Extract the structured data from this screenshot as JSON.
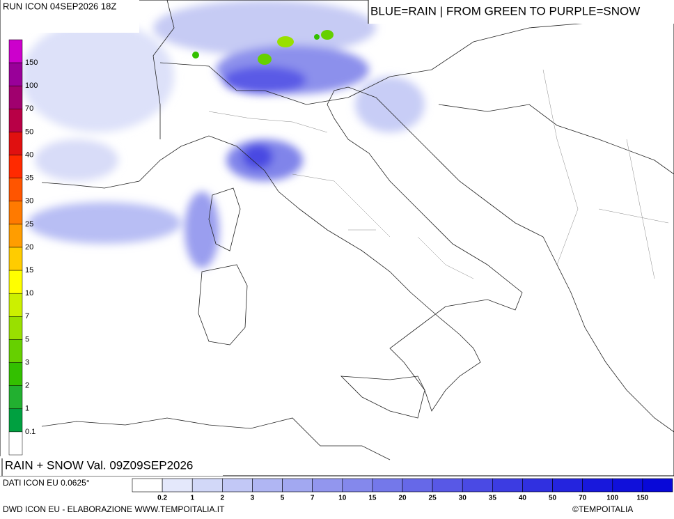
{
  "header": {
    "run": "RUN ICON 04SEP2026 18Z",
    "legend_note": "BLUE=RAIN | FROM GREEN TO PURPLE=SNOW"
  },
  "map": {
    "field_label": "RAIN + SNOW Val. 09Z09SEP2026"
  },
  "snow_scale": {
    "colors": [
      "#cc00cc",
      "#990099",
      "#a0006e",
      "#b80046",
      "#e01010",
      "#ff2a00",
      "#ff5500",
      "#ff7a00",
      "#ff9d00",
      "#ffcc00",
      "#ffff00",
      "#ccf000",
      "#99e000",
      "#66d000",
      "#33c000",
      "#22b030",
      "#00a040",
      "#ffffff"
    ],
    "labels": [
      "150",
      "100",
      "70",
      "50",
      "40",
      "35",
      "30",
      "25",
      "20",
      "15",
      "10",
      "7",
      "5",
      "3",
      "2",
      "1",
      "0.1"
    ]
  },
  "rain_scale": {
    "colors": [
      "#ffffff",
      "#e4e8fb",
      "#d2d8f8",
      "#c2c8f6",
      "#b0b6f3",
      "#a2a8f1",
      "#9296ee",
      "#8488ec",
      "#7478ea",
      "#6668e8",
      "#5858e6",
      "#4a4ae4",
      "#3c3ce2",
      "#3030e0",
      "#2424de",
      "#1818dc",
      "#1010da",
      "#0808d8"
    ],
    "labels": [
      "0.2",
      "1",
      "2",
      "3",
      "5",
      "7",
      "10",
      "15",
      "20",
      "25",
      "30",
      "35",
      "40",
      "50",
      "70",
      "100",
      "150"
    ]
  },
  "footer": {
    "source": "DATI ICON EU 0.0625°",
    "credit": "DWD ICON EU - ELABORAZIONE WWW.TEMPOITALIA.IT",
    "copyright": "©TEMPOITALIA"
  }
}
